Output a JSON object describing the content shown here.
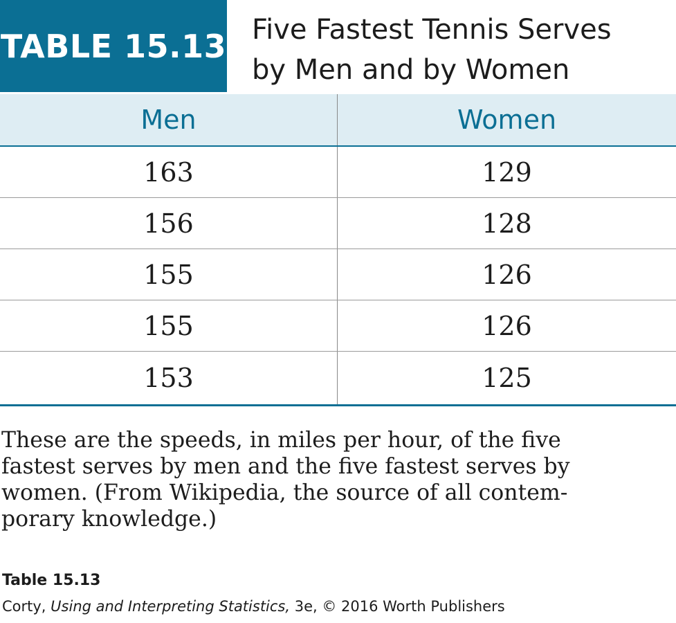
{
  "table_label": "TABLE 15.13",
  "title_lines": [
    "Five Fastest Tennis Serves",
    "by Men and by Women"
  ],
  "columns": [
    "Men",
    "Women"
  ],
  "rows": [
    [
      "163",
      "129"
    ],
    [
      "156",
      "128"
    ],
    [
      "155",
      "126"
    ],
    [
      "155",
      "126"
    ],
    [
      "153",
      "125"
    ]
  ],
  "note_lines": [
    "These are the speeds, in miles per hour, of the five",
    "fastest serves by men and the five fastest serves by",
    "women. (From Wikipedia, the source of all contem-",
    "porary knowledge.)"
  ],
  "caption": "Table 15.13",
  "credit": {
    "prefix": "Corty, ",
    "book": "Using and Interpreting Statistics,",
    "suffix": " 3e, © 2016 Worth Publishers"
  },
  "colors": {
    "accent": "#0b6f94",
    "header_fill": "#deedf3"
  }
}
